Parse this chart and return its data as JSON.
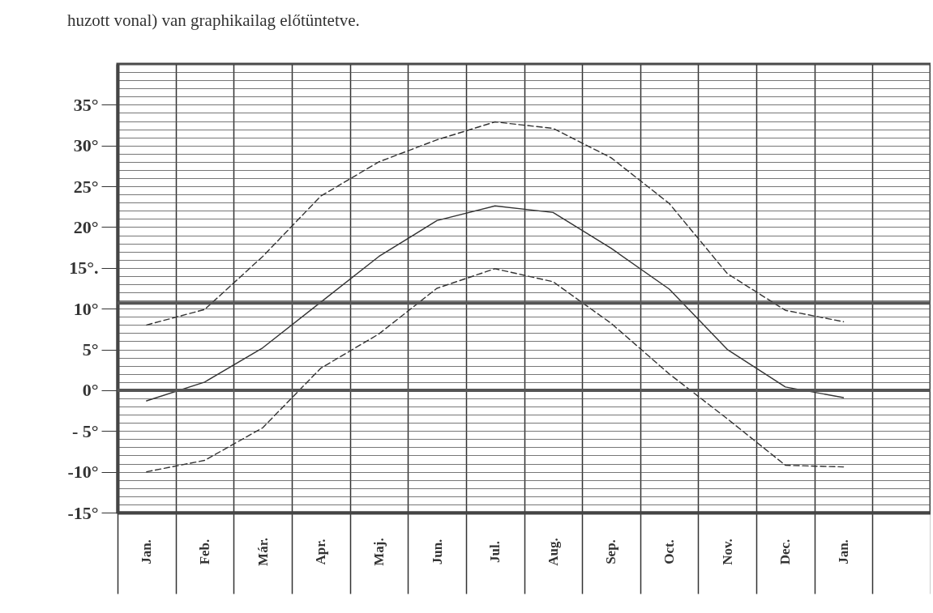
{
  "chart_data": {
    "type": "line",
    "annotations": [
      "huzott vonal) van graphikailag előtüntetve."
    ],
    "categories": [
      "Jan.",
      "Feb.",
      "Már.",
      "Apr.",
      "Maj.",
      "Jun.",
      "Jul.",
      "Aug.",
      "Sep.",
      "Oct.",
      "Nov.",
      "Dec.",
      "Jan.",
      null
    ],
    "series": [
      {
        "color": "#333333",
        "line_style": "dashed",
        "values": [
          8.0,
          9.9,
          16.4,
          23.8,
          28.0,
          30.7,
          32.9,
          32.1,
          28.5,
          22.9,
          14.3,
          9.8,
          8.4,
          null
        ]
      },
      {
        "color": "#333333",
        "line_style": "solid",
        "values": [
          -1.3,
          1.0,
          5.2,
          10.8,
          16.4,
          20.8,
          22.6,
          21.8,
          17.4,
          12.4,
          5.0,
          0.4,
          -0.9,
          null
        ]
      },
      {
        "color": "#333333",
        "line_style": "dashed",
        "values": [
          -10.0,
          -8.6,
          -4.6,
          2.7,
          6.9,
          12.5,
          14.9,
          13.3,
          8.2,
          2.0,
          -3.5,
          -9.2,
          -9.4,
          null
        ]
      }
    ],
    "ylim": [
      -15,
      40
    ],
    "yticks": [
      {
        "value": -15,
        "label": "-15°"
      },
      {
        "value": -10,
        "label": "-10°"
      },
      {
        "value": -5,
        "label": "- 5°"
      },
      {
        "value": 0,
        "label": "0°"
      },
      {
        "value": 5,
        "label": "5°"
      },
      {
        "value": 10,
        "label": "10°"
      },
      {
        "value": 15,
        "label": "15°."
      },
      {
        "value": 20,
        "label": "20°"
      },
      {
        "value": 25,
        "label": "25°"
      },
      {
        "value": 30,
        "label": "30°"
      },
      {
        "value": 35,
        "label": "35°"
      }
    ],
    "ref_lines": [
      {
        "axis": "y",
        "value": 0,
        "color": "#555555"
      },
      {
        "axis": "y",
        "value": 10.7,
        "color": "#555555"
      }
    ],
    "grid": true
  }
}
